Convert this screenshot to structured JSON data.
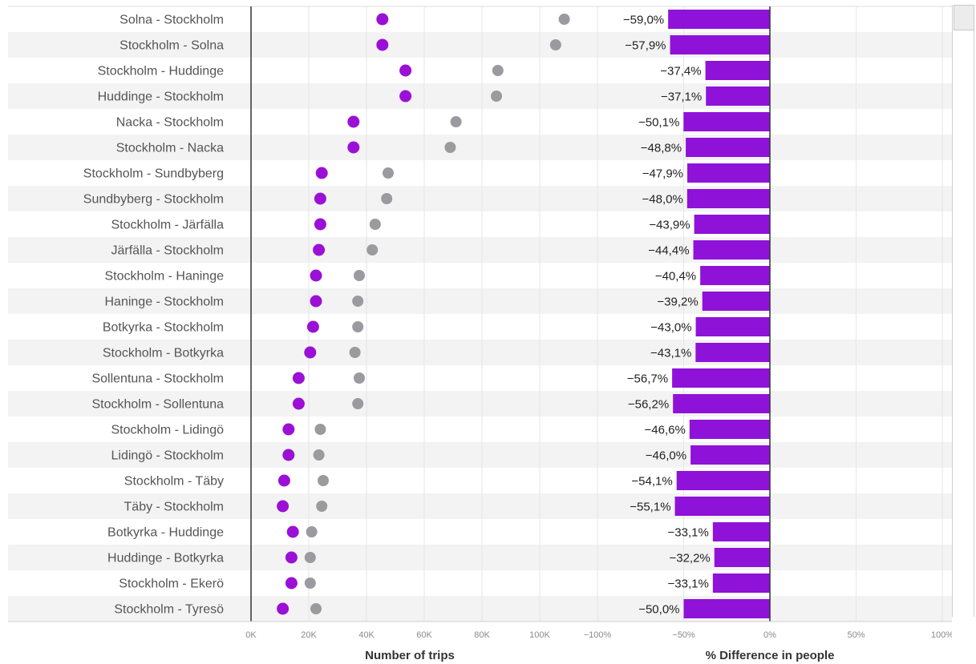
{
  "chart_data": {
    "type": "scatter",
    "rows": [
      {
        "label": "Solna - Stockholm",
        "trips_2020": 45500,
        "trips_2019": 108500,
        "pct": -59.0,
        "pct_label": "−59,0%"
      },
      {
        "label": "Stockholm - Solna",
        "trips_2020": 45500,
        "trips_2019": 105500,
        "pct": -57.9,
        "pct_label": "−57,9%"
      },
      {
        "label": "Stockholm - Huddinge",
        "trips_2020": 53500,
        "trips_2019": 85500,
        "pct": -37.4,
        "pct_label": "−37,4%"
      },
      {
        "label": "Huddinge - Stockholm",
        "trips_2020": 53500,
        "trips_2019": 85000,
        "pct": -37.1,
        "pct_label": "−37,1%"
      },
      {
        "label": "Nacka - Stockholm",
        "trips_2020": 35500,
        "trips_2019": 71000,
        "pct": -50.1,
        "pct_label": "−50,1%"
      },
      {
        "label": "Stockholm - Nacka",
        "trips_2020": 35500,
        "trips_2019": 69000,
        "pct": -48.8,
        "pct_label": "−48,8%"
      },
      {
        "label": "Stockholm - Sundbyberg",
        "trips_2020": 24500,
        "trips_2019": 47500,
        "pct": -47.9,
        "pct_label": "−47,9%"
      },
      {
        "label": "Sundbyberg - Stockholm",
        "trips_2020": 24000,
        "trips_2019": 47000,
        "pct": -48.0,
        "pct_label": "−48,0%"
      },
      {
        "label": "Stockholm - Järfälla",
        "trips_2020": 24000,
        "trips_2019": 43000,
        "pct": -43.9,
        "pct_label": "−43,9%"
      },
      {
        "label": "Järfälla - Stockholm",
        "trips_2020": 23500,
        "trips_2019": 42000,
        "pct": -44.4,
        "pct_label": "−44,4%"
      },
      {
        "label": "Stockholm - Haninge",
        "trips_2020": 22500,
        "trips_2019": 37500,
        "pct": -40.4,
        "pct_label": "−40,4%"
      },
      {
        "label": "Haninge - Stockholm",
        "trips_2020": 22500,
        "trips_2019": 37000,
        "pct": -39.2,
        "pct_label": "−39,2%"
      },
      {
        "label": "Botkyrka - Stockholm",
        "trips_2020": 21500,
        "trips_2019": 37000,
        "pct": -43.0,
        "pct_label": "−43,0%"
      },
      {
        "label": "Stockholm - Botkyrka",
        "trips_2020": 20500,
        "trips_2019": 36000,
        "pct": -43.1,
        "pct_label": "−43,1%"
      },
      {
        "label": "Sollentuna - Stockholm",
        "trips_2020": 16500,
        "trips_2019": 37500,
        "pct": -56.7,
        "pct_label": "−56,7%"
      },
      {
        "label": "Stockholm - Sollentuna",
        "trips_2020": 16500,
        "trips_2019": 37000,
        "pct": -56.2,
        "pct_label": "−56,2%"
      },
      {
        "label": "Stockholm - Lidingö",
        "trips_2020": 13000,
        "trips_2019": 24000,
        "pct": -46.6,
        "pct_label": "−46,6%"
      },
      {
        "label": "Lidingö - Stockholm",
        "trips_2020": 13000,
        "trips_2019": 23500,
        "pct": -46.0,
        "pct_label": "−46,0%"
      },
      {
        "label": "Stockholm - Täby",
        "trips_2020": 11500,
        "trips_2019": 25000,
        "pct": -54.1,
        "pct_label": "−54,1%"
      },
      {
        "label": "Täby - Stockholm",
        "trips_2020": 11000,
        "trips_2019": 24500,
        "pct": -55.1,
        "pct_label": "−55,1%"
      },
      {
        "label": "Botkyrka - Huddinge",
        "trips_2020": 14500,
        "trips_2019": 21000,
        "pct": -33.1,
        "pct_label": "−33,1%"
      },
      {
        "label": "Huddinge - Botkyrka",
        "trips_2020": 14000,
        "trips_2019": 20500,
        "pct": -32.2,
        "pct_label": "−32,2%"
      },
      {
        "label": "Stockholm - Ekerö",
        "trips_2020": 14000,
        "trips_2019": 20500,
        "pct": -33.1,
        "pct_label": "−33,1%"
      },
      {
        "label": "Stockholm - Tyresö",
        "trips_2020": 11000,
        "trips_2019": 22500,
        "pct": -50.0,
        "pct_label": "−50,0%"
      }
    ],
    "trips_axis": {
      "title": "Number of trips",
      "range": [
        0,
        120000
      ],
      "ticks": [
        0,
        20000,
        40000,
        60000,
        80000,
        100000
      ],
      "tick_labels": [
        "0K",
        "20K",
        "40K",
        "60K",
        "80K",
        "100K"
      ]
    },
    "pct_axis": {
      "title": "% Difference in people",
      "range": [
        -100,
        100
      ],
      "ticks": [
        -100,
        -50,
        0,
        50,
        100
      ],
      "tick_labels": [
        "−100%",
        "−50%",
        "0%",
        "50%",
        "100%"
      ]
    },
    "colors": {
      "current_dot": "#9b10d6",
      "previous_dot": "#9a9a9f",
      "bar": "#8f12d9",
      "row_band": "#f3f3f3",
      "grid": "#e6e6e6",
      "axis": "#333333"
    },
    "grid": true
  }
}
